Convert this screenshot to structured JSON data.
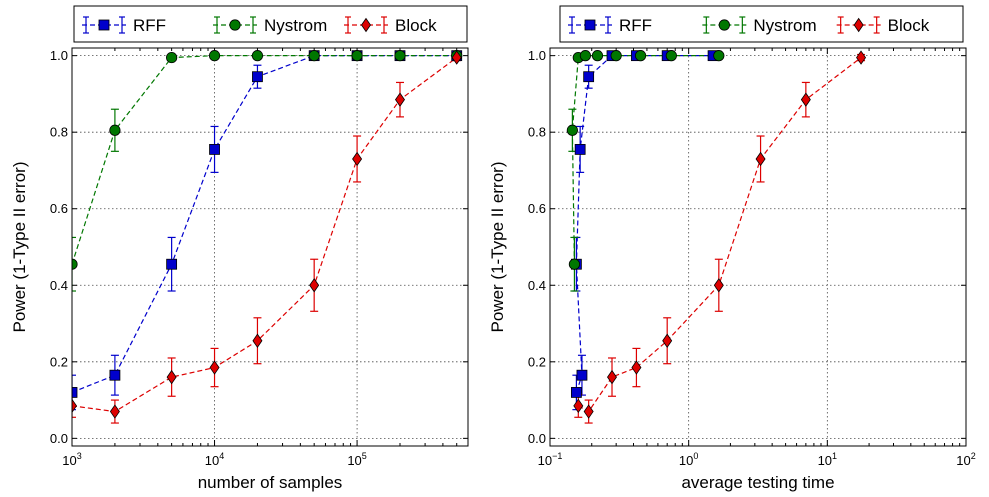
{
  "chart_data": [
    {
      "type": "line",
      "xscale": "log",
      "x": [
        1000,
        2000,
        5000,
        10000,
        20000,
        50000,
        100000,
        200000,
        500000
      ],
      "xlim": [
        1000,
        600000
      ],
      "ylim": [
        -0.02,
        1.02
      ],
      "xlabel": "number of samples",
      "ylabel": "Power (1-Type II error)",
      "xticks": [
        {
          "base": "10",
          "exp": "3",
          "value": 1000
        },
        {
          "base": "10",
          "exp": "4",
          "value": 10000
        },
        {
          "base": "10",
          "exp": "5",
          "value": 100000
        }
      ],
      "yticks": [
        "0.0",
        "0.2",
        "0.4",
        "0.6",
        "0.8",
        "1.0"
      ],
      "grid": true,
      "legend_position": "top",
      "series": [
        {
          "name": "RFF",
          "color": "#0000cc",
          "marker": "square",
          "values": [
            0.12,
            0.165,
            0.455,
            0.755,
            0.945,
            1.0,
            1.0,
            1.0,
            1.0
          ],
          "err": [
            0.045,
            0.052,
            0.07,
            0.06,
            0.03,
            0.005,
            0.0,
            0.0,
            0.0
          ]
        },
        {
          "name": "Nystrom",
          "color": "#007700",
          "marker": "circle",
          "values": [
            0.455,
            0.805,
            0.995,
            1.0,
            1.0,
            1.0,
            1.0,
            1.0,
            1.0
          ],
          "err": [
            0.07,
            0.055,
            0.005,
            0.0,
            0.0,
            0.0,
            0.0,
            0.0,
            0.0
          ]
        },
        {
          "name": "Block",
          "color": "#dd0000",
          "marker": "diamond",
          "values": [
            0.085,
            0.07,
            0.16,
            0.185,
            0.255,
            0.4,
            0.73,
            0.885,
            0.995
          ],
          "err": [
            0.03,
            0.03,
            0.05,
            0.05,
            0.06,
            0.068,
            0.06,
            0.045,
            0.008
          ]
        }
      ]
    },
    {
      "type": "line",
      "xscale": "log",
      "xlim": [
        0.1,
        100
      ],
      "ylim": [
        -0.02,
        1.02
      ],
      "xlabel": "average testing time",
      "ylabel": "Power (1-Type II error)",
      "xticks": [
        {
          "base": "10",
          "exp": "−1",
          "value": 0.1
        },
        {
          "base": "10",
          "exp": "0",
          "value": 1
        },
        {
          "base": "10",
          "exp": "1",
          "value": 10
        },
        {
          "base": "10",
          "exp": "2",
          "value": 100
        }
      ],
      "yticks": [
        "0.0",
        "0.2",
        "0.4",
        "0.6",
        "0.8",
        "1.0"
      ],
      "grid": true,
      "legend_position": "top",
      "series": [
        {
          "name": "RFF",
          "color": "#0000cc",
          "marker": "square",
          "x": [
            0.155,
            0.17,
            0.155,
            0.165,
            0.19,
            0.28,
            0.42,
            0.7,
            1.5
          ],
          "values": [
            0.12,
            0.165,
            0.455,
            0.755,
            0.945,
            1.0,
            1.0,
            1.0,
            1.0
          ],
          "err": [
            0.045,
            0.052,
            0.07,
            0.06,
            0.03,
            0.005,
            0.0,
            0.0,
            0.0
          ]
        },
        {
          "name": "Nystrom",
          "color": "#007700",
          "marker": "circle",
          "x": [
            0.15,
            0.145,
            0.16,
            0.18,
            0.22,
            0.3,
            0.45,
            0.75,
            1.65
          ],
          "values": [
            0.455,
            0.805,
            0.995,
            1.0,
            1.0,
            1.0,
            1.0,
            1.0,
            1.0
          ],
          "err": [
            0.07,
            0.055,
            0.005,
            0.0,
            0.0,
            0.0,
            0.0,
            0.0,
            0.0
          ]
        },
        {
          "name": "Block",
          "color": "#dd0000",
          "marker": "diamond",
          "x": [
            0.16,
            0.19,
            0.28,
            0.42,
            0.7,
            1.65,
            3.3,
            7.0,
            17.5
          ],
          "values": [
            0.085,
            0.07,
            0.16,
            0.185,
            0.255,
            0.4,
            0.73,
            0.885,
            0.995
          ],
          "err": [
            0.03,
            0.03,
            0.05,
            0.05,
            0.06,
            0.068,
            0.06,
            0.045,
            0.008
          ]
        }
      ]
    }
  ]
}
